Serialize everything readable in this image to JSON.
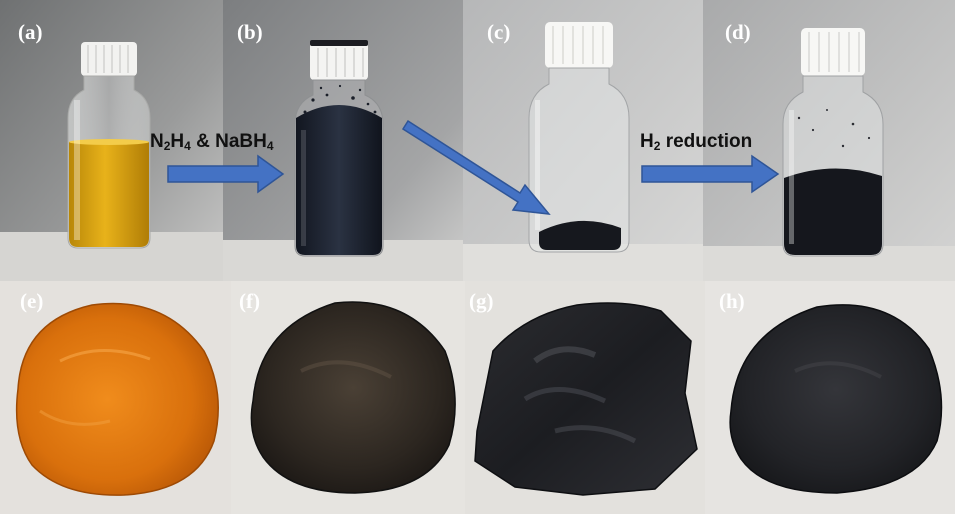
{
  "panels": {
    "a": {
      "label": "(a)"
    },
    "b": {
      "label": "(b)"
    },
    "c": {
      "label": "(c)"
    },
    "d": {
      "label": "(d)"
    },
    "e": {
      "label": "(e)"
    },
    "f": {
      "label": "(f)"
    },
    "g": {
      "label": "(g)"
    },
    "h": {
      "label": "(h)"
    }
  },
  "arrows": {
    "first": {
      "formula_parts": [
        "N",
        "2",
        "H",
        "4",
        " & NaBH",
        "4"
      ]
    },
    "third": {
      "formula_parts": [
        "H",
        "2",
        " reduction"
      ]
    }
  },
  "colors": {
    "arrow_fill": "#4472c4",
    "arrow_stroke": "#2f5597",
    "yellow_solution": "#d9a10a",
    "dark_solution": "#1a2130",
    "orange_film": "#e07a10",
    "dark_film": "#2a2620",
    "black_film": "#1d1e22"
  }
}
